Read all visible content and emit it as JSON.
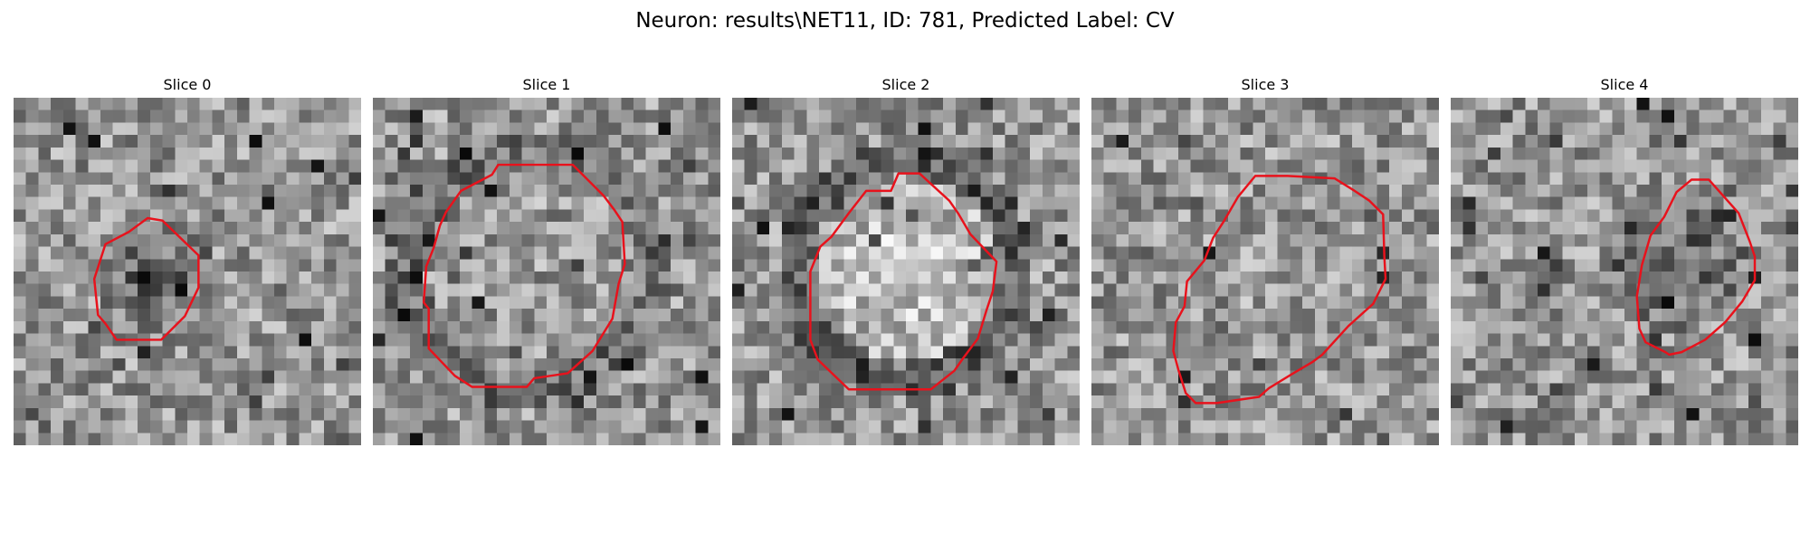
{
  "title": "Neuron: results\\NET11, ID: 781, Predicted Label: CV",
  "contour_color": "#e8121c",
  "image_grid": 28,
  "panels": [
    {
      "label": "Slice 0",
      "seed": 11,
      "center": [
        11.5,
        14.5
      ],
      "radius": 5.0,
      "tone": "dark",
      "ring": 0.0,
      "contour": [
        [
          10.8,
          9.7
        ],
        [
          12.0,
          9.9
        ],
        [
          14.9,
          12.7
        ],
        [
          14.9,
          15.3
        ],
        [
          13.8,
          17.6
        ],
        [
          11.9,
          19.5
        ],
        [
          8.3,
          19.5
        ],
        [
          7.4,
          18.2
        ],
        [
          6.8,
          17.5
        ],
        [
          6.5,
          14.6
        ],
        [
          7.4,
          11.8
        ],
        [
          9.3,
          10.8
        ]
      ]
    },
    {
      "label": "Slice 1",
      "seed": 23,
      "center": [
        12.5,
        14.0
      ],
      "radius": 8.8,
      "tone": "mid",
      "ring": 0.6,
      "contour": [
        [
          10.1,
          5.4
        ],
        [
          16.1,
          5.4
        ],
        [
          18.6,
          7.9
        ],
        [
          19.5,
          9.1
        ],
        [
          20.1,
          10.0
        ],
        [
          20.3,
          13.4
        ],
        [
          19.8,
          15.0
        ],
        [
          19.3,
          17.8
        ],
        [
          17.7,
          20.4
        ],
        [
          15.7,
          22.2
        ],
        [
          13.0,
          22.6
        ],
        [
          12.4,
          23.3
        ],
        [
          8.0,
          23.3
        ],
        [
          6.6,
          22.4
        ],
        [
          4.5,
          20.2
        ],
        [
          4.5,
          17.0
        ],
        [
          4.1,
          16.5
        ],
        [
          4.3,
          13.6
        ],
        [
          4.9,
          12.1
        ],
        [
          5.4,
          10.3
        ],
        [
          5.9,
          9.2
        ],
        [
          7.1,
          7.5
        ],
        [
          9.6,
          6.2
        ]
      ]
    },
    {
      "label": "Slice 2",
      "seed": 37,
      "center": [
        14.0,
        13.8
      ],
      "radius": 7.9,
      "tone": "light",
      "ring": 1.0,
      "contour": [
        [
          13.4,
          6.1
        ],
        [
          15.1,
          6.1
        ],
        [
          17.5,
          8.3
        ],
        [
          18.2,
          9.3
        ],
        [
          19.2,
          11.0
        ],
        [
          21.3,
          13.2
        ],
        [
          21.0,
          15.6
        ],
        [
          20.5,
          17.1
        ],
        [
          19.8,
          19.4
        ],
        [
          18.6,
          21.0
        ],
        [
          17.9,
          22.0
        ],
        [
          16.0,
          23.5
        ],
        [
          9.4,
          23.5
        ],
        [
          6.9,
          21.1
        ],
        [
          6.3,
          19.5
        ],
        [
          6.3,
          14.0
        ],
        [
          7.1,
          12.0
        ],
        [
          8.0,
          11.2
        ],
        [
          9.4,
          9.3
        ],
        [
          10.8,
          7.5
        ],
        [
          12.8,
          7.5
        ]
      ]
    },
    {
      "label": "Slice 3",
      "seed": 53,
      "center": [
        14.2,
        14.5
      ],
      "radius": 8.6,
      "tone": "mid",
      "ring": 0.0,
      "contour": [
        [
          13.2,
          6.3
        ],
        [
          15.8,
          6.3
        ],
        [
          19.6,
          6.5
        ],
        [
          21.2,
          7.5
        ],
        [
          22.4,
          8.3
        ],
        [
          23.5,
          9.4
        ],
        [
          23.6,
          12.8
        ],
        [
          23.7,
          14.6
        ],
        [
          22.7,
          16.6
        ],
        [
          20.7,
          18.4
        ],
        [
          18.6,
          20.7
        ],
        [
          17.8,
          21.3
        ],
        [
          16.1,
          22.3
        ],
        [
          14.3,
          23.4
        ],
        [
          13.5,
          24.1
        ],
        [
          10.1,
          24.6
        ],
        [
          8.4,
          24.6
        ],
        [
          7.6,
          23.8
        ],
        [
          7.0,
          21.9
        ],
        [
          6.6,
          20.4
        ],
        [
          6.8,
          18.1
        ],
        [
          7.5,
          16.8
        ],
        [
          7.7,
          14.8
        ],
        [
          9.1,
          13.1
        ],
        [
          9.8,
          11.3
        ],
        [
          10.7,
          9.9
        ],
        [
          11.8,
          8.0
        ]
      ]
    },
    {
      "label": "Slice 4",
      "seed": 71,
      "center": [
        18.3,
        13.0
      ],
      "radius": 5.7,
      "tone": "dark",
      "ring": 0.0,
      "contour": [
        [
          19.4,
          6.6
        ],
        [
          20.8,
          6.6
        ],
        [
          23.2,
          9.3
        ],
        [
          24.1,
          11.6
        ],
        [
          24.5,
          12.8
        ],
        [
          24.5,
          14.7
        ],
        [
          23.5,
          16.4
        ],
        [
          22.1,
          18.1
        ],
        [
          20.5,
          19.5
        ],
        [
          18.6,
          20.5
        ],
        [
          17.6,
          20.7
        ],
        [
          17.3,
          20.5
        ],
        [
          15.7,
          19.7
        ],
        [
          15.2,
          18.6
        ],
        [
          15.0,
          16.0
        ],
        [
          15.4,
          13.5
        ],
        [
          16.1,
          11.1
        ],
        [
          17.2,
          9.6
        ],
        [
          18.2,
          7.6
        ]
      ]
    }
  ]
}
